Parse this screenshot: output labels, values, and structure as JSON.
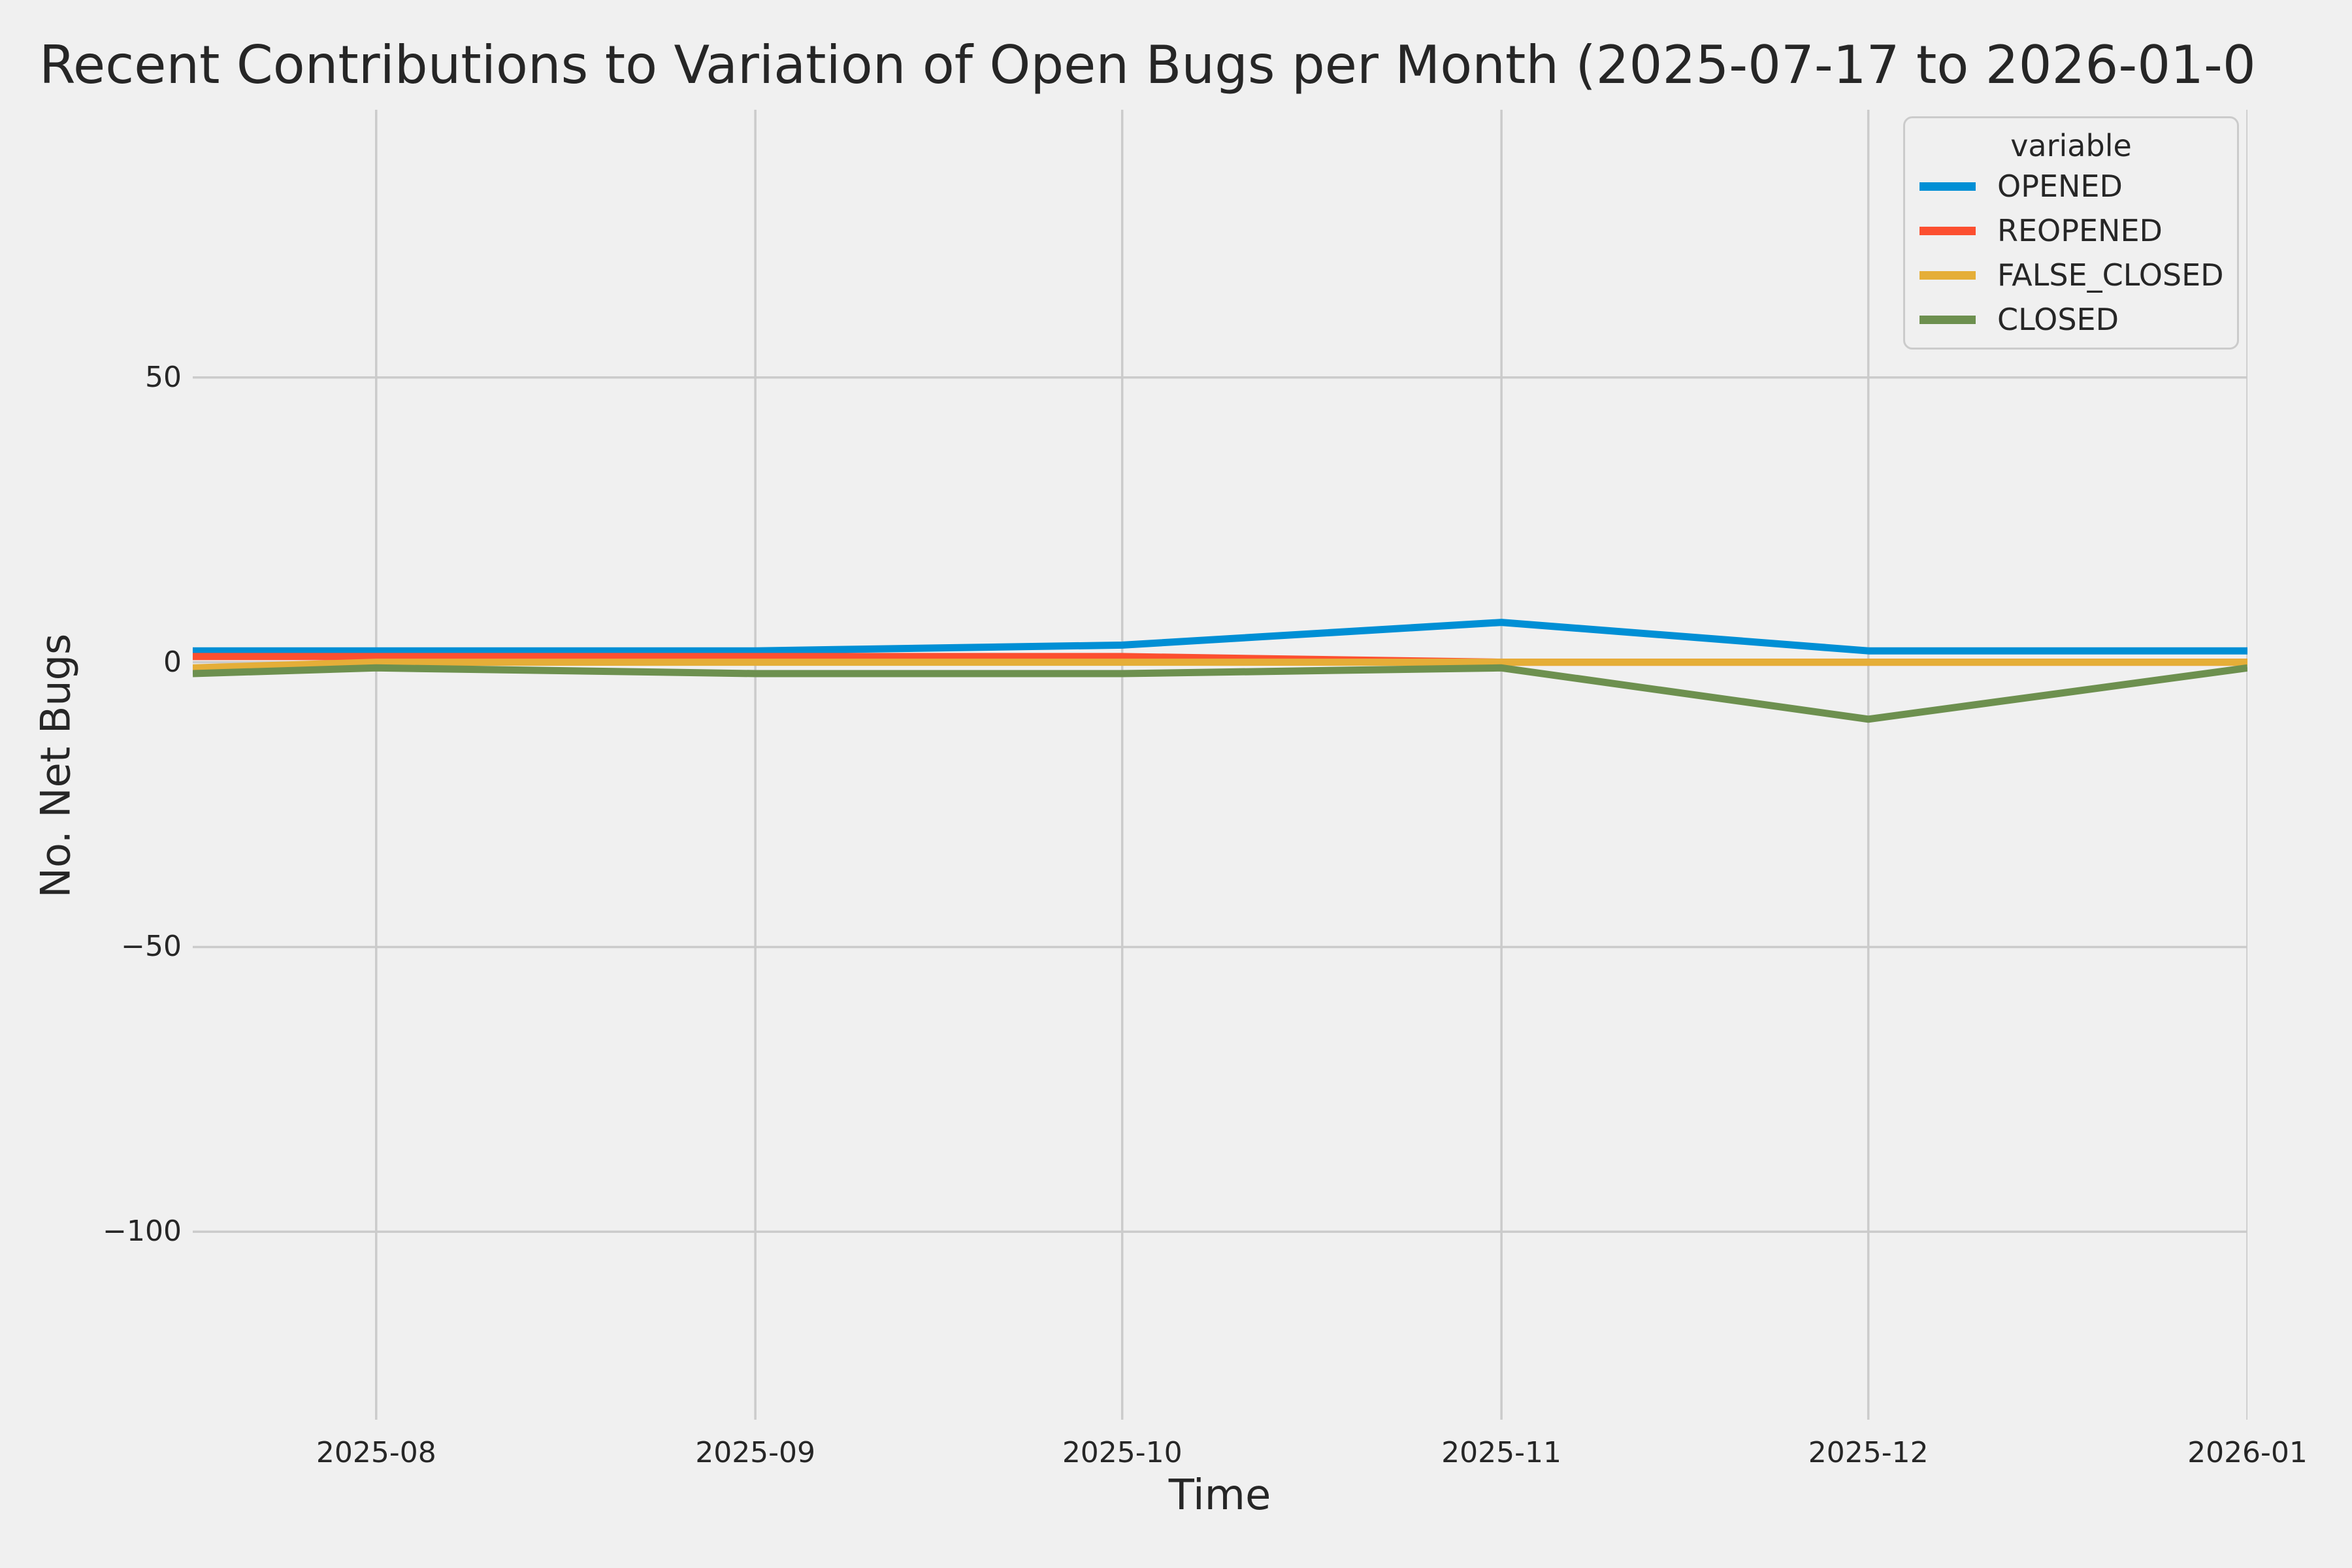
{
  "style": {
    "background": "#f0f0f0",
    "grid_color": "#cbcbcb",
    "text_color": "#262626",
    "line_width": 11,
    "grid_width": 3.5
  },
  "chart_data": {
    "type": "line",
    "title": "Recent Contributions to Variation of Open Bugs per Month (2025-07-17 to 2026-01-0",
    "xlabel": "Time",
    "ylabel": "No. Net Bugs",
    "x_dates": [
      "2025-07-17",
      "2025-08-01",
      "2025-09-01",
      "2025-10-01",
      "2025-11-01",
      "2025-12-01",
      "2026-01-01"
    ],
    "x_days_since_start": [
      0,
      15,
      46,
      76,
      107,
      137,
      168
    ],
    "series": [
      {
        "name": "OPENED",
        "color": "#008fd5",
        "values": [
          2,
          2,
          2,
          3,
          7,
          2,
          2
        ]
      },
      {
        "name": "REOPENED",
        "color": "#fc4f30",
        "values": [
          1,
          1,
          1,
          1,
          0,
          0,
          0
        ]
      },
      {
        "name": "FALSE_CLOSED",
        "color": "#e5ae38",
        "values": [
          -1,
          0,
          0,
          0,
          0,
          0,
          0
        ]
      },
      {
        "name": "CLOSED",
        "color": "#6d904f",
        "values": [
          -2,
          -1,
          -2,
          -2,
          -1,
          -10,
          -1
        ]
      }
    ],
    "xticks": [
      {
        "label": "2025-08",
        "day": 15
      },
      {
        "label": "2025-09",
        "day": 46
      },
      {
        "label": "2025-10",
        "day": 76
      },
      {
        "label": "2025-11",
        "day": 107
      },
      {
        "label": "2025-12",
        "day": 137
      },
      {
        "label": "2026-01",
        "day": 168
      }
    ],
    "yticks": [
      {
        "label": "50",
        "value": 50
      },
      {
        "label": "0",
        "value": 0
      },
      {
        "label": "−50",
        "value": -50
      },
      {
        "label": "−100",
        "value": -100
      }
    ],
    "xlim_days": [
      0,
      168
    ],
    "ylim": [
      -133,
      97
    ],
    "grid": true,
    "legend": {
      "title": "variable",
      "position": "upper right",
      "entries": [
        "OPENED",
        "REOPENED",
        "FALSE_CLOSED",
        "CLOSED"
      ]
    }
  }
}
